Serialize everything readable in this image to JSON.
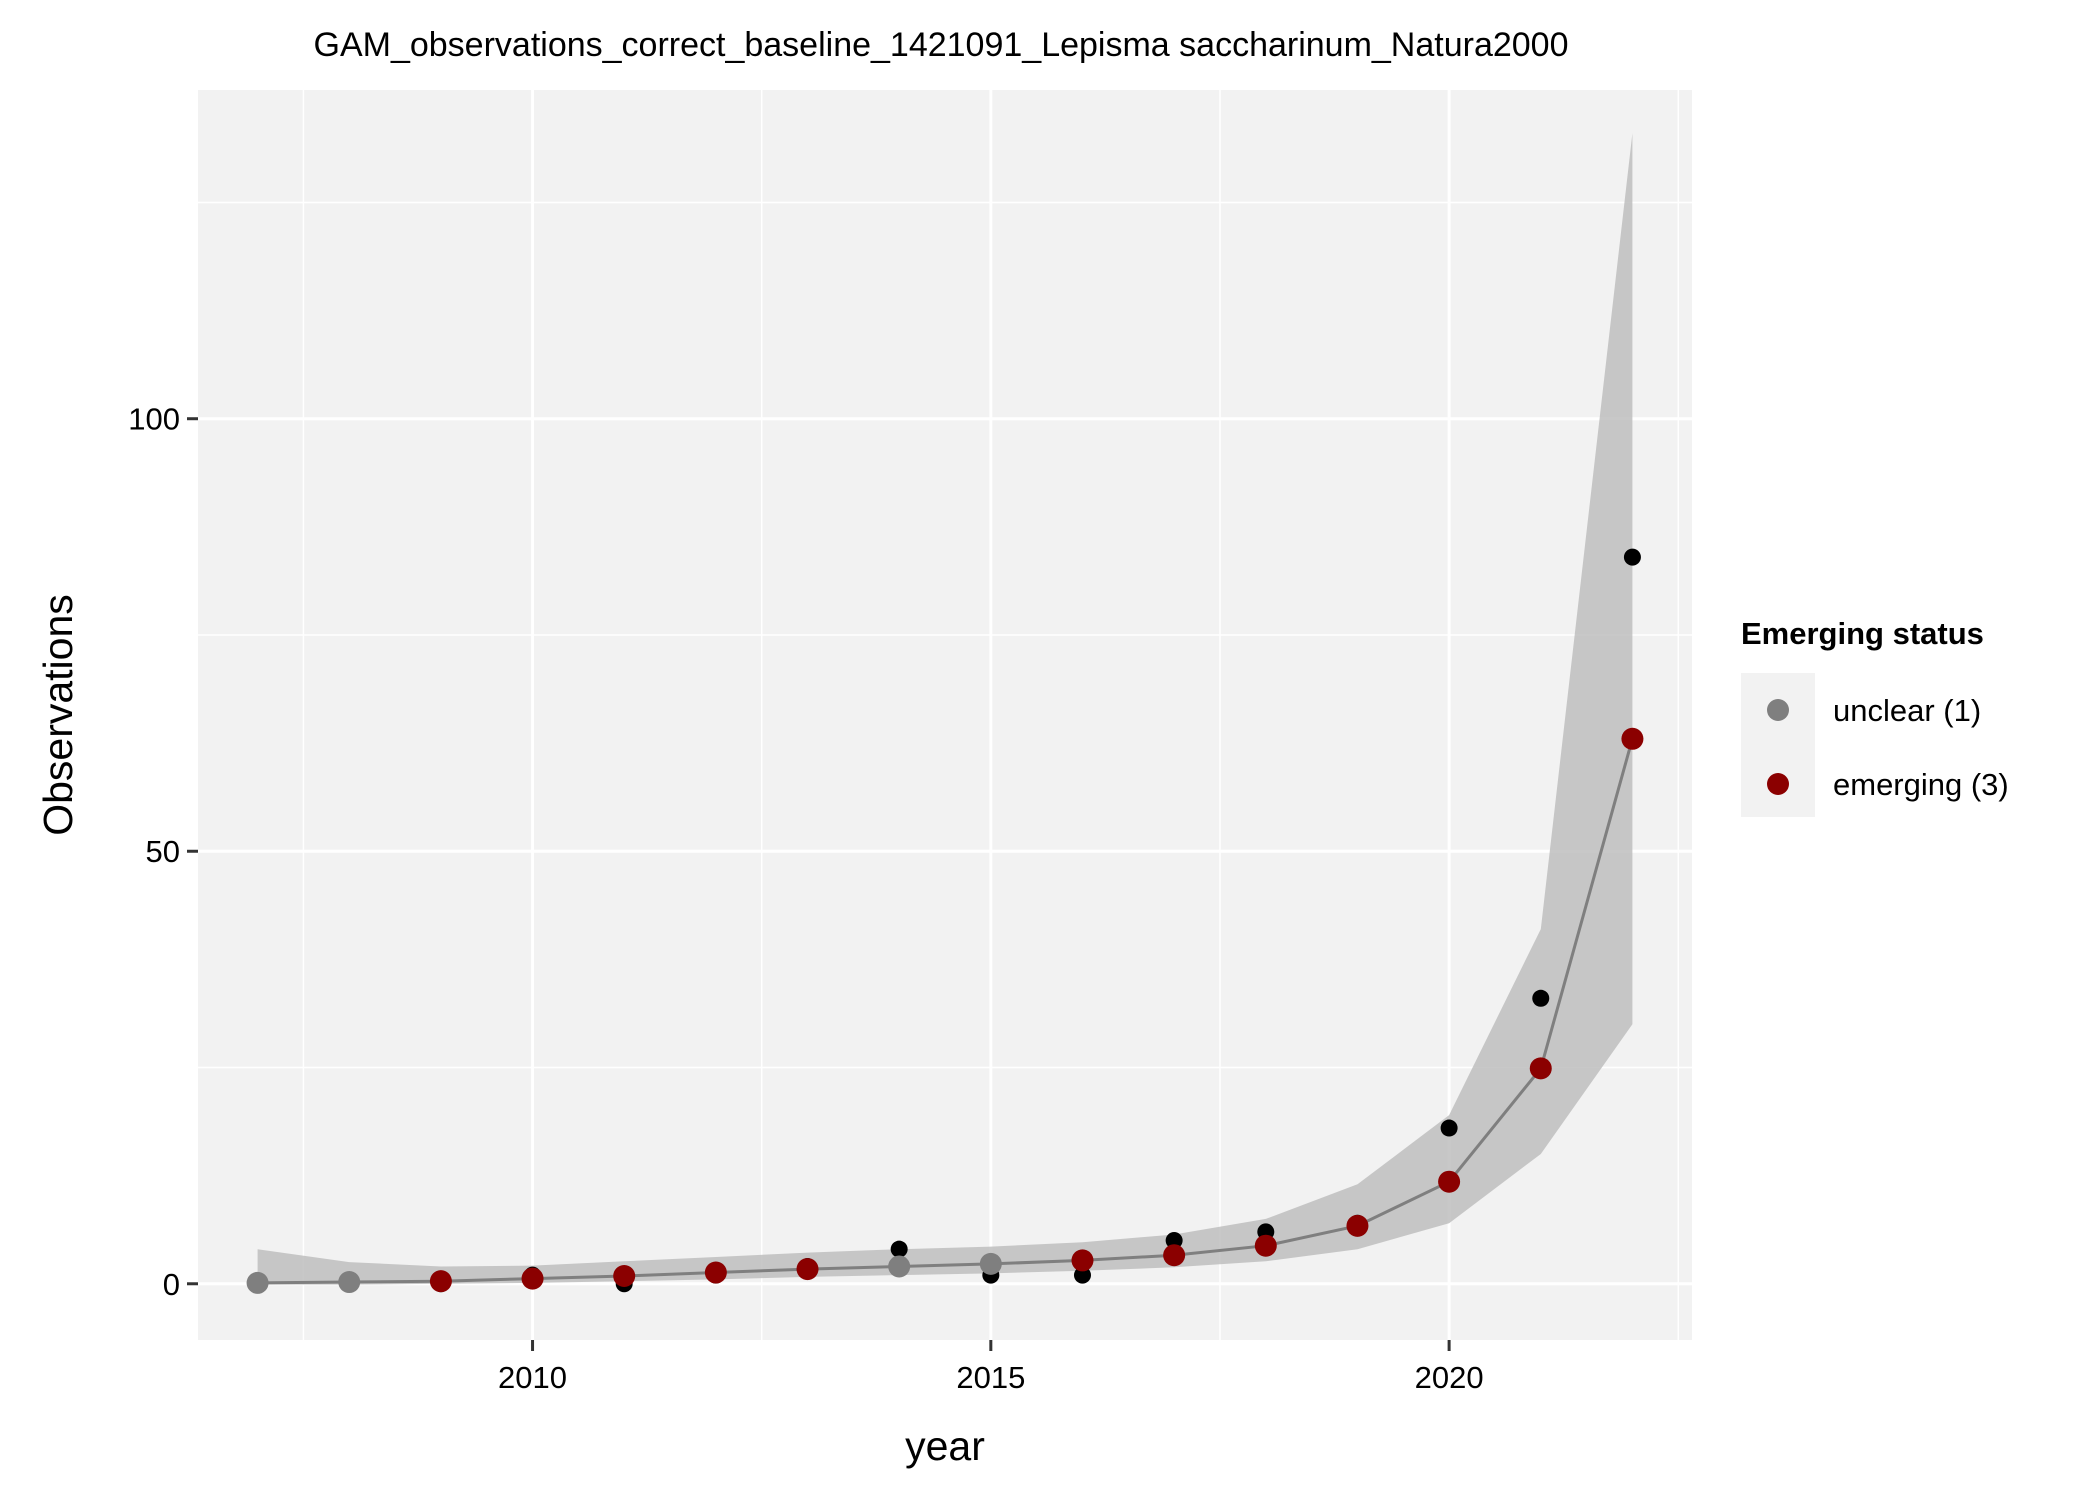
{
  "chart_data": {
    "type": "scatter",
    "title": "GAM_observations_correct_baseline_1421091_Lepisma saccharinum_Natura2000",
    "xlabel": "year",
    "ylabel": "Observations",
    "xlim": [
      2006.35,
      2022.65
    ],
    "ylim": [
      -6.5,
      138
    ],
    "x_ticks": [
      2010,
      2015,
      2020
    ],
    "y_ticks": [
      0,
      50,
      100
    ],
    "grid": true,
    "legend": {
      "title": "Emerging status",
      "position": "right",
      "entries": [
        {
          "label": "unclear (1)",
          "color": "#7f7f7f"
        },
        {
          "label": "emerging (3)",
          "color": "#8b0000"
        }
      ]
    },
    "observed": {
      "color": "#000000",
      "points": [
        {
          "x": 2007,
          "y": 0
        },
        {
          "x": 2008,
          "y": 0
        },
        {
          "x": 2009,
          "y": 0
        },
        {
          "x": 2010,
          "y": 1
        },
        {
          "x": 2011,
          "y": 0
        },
        {
          "x": 2012,
          "y": 1
        },
        {
          "x": 2013,
          "y": 2
        },
        {
          "x": 2014,
          "y": 4
        },
        {
          "x": 2015,
          "y": 1
        },
        {
          "x": 2016,
          "y": 1
        },
        {
          "x": 2017,
          "y": 5
        },
        {
          "x": 2018,
          "y": 6
        },
        {
          "x": 2019,
          "y": 7
        },
        {
          "x": 2020,
          "y": 18
        },
        {
          "x": 2021,
          "y": 33
        },
        {
          "x": 2022,
          "y": 84
        }
      ]
    },
    "fit": {
      "line_color": "#7f7f7f",
      "band_color": "#bebebe",
      "points": [
        {
          "x": 2007,
          "y": 0.1,
          "lower": -0.1,
          "upper": 4.0,
          "status": "unclear (1)"
        },
        {
          "x": 2008,
          "y": 0.2,
          "lower": -0.1,
          "upper": 2.5,
          "status": "unclear (1)"
        },
        {
          "x": 2009,
          "y": 0.3,
          "lower": 0.0,
          "upper": 2.0,
          "status": "emerging (3)"
        },
        {
          "x": 2010,
          "y": 0.6,
          "lower": 0.1,
          "upper": 2.1,
          "status": "emerging (3)"
        },
        {
          "x": 2011,
          "y": 0.9,
          "lower": 0.3,
          "upper": 2.6,
          "status": "emerging (3)"
        },
        {
          "x": 2012,
          "y": 1.3,
          "lower": 0.5,
          "upper": 3.1,
          "status": "emerging (3)"
        },
        {
          "x": 2013,
          "y": 1.7,
          "lower": 0.8,
          "upper": 3.6,
          "status": "emerging (3)"
        },
        {
          "x": 2014,
          "y": 2.0,
          "lower": 1.0,
          "upper": 4.0,
          "status": "unclear (1)"
        },
        {
          "x": 2015,
          "y": 2.3,
          "lower": 1.2,
          "upper": 4.3,
          "status": "unclear (1)"
        },
        {
          "x": 2016,
          "y": 2.7,
          "lower": 1.5,
          "upper": 4.8,
          "status": "emerging (3)"
        },
        {
          "x": 2017,
          "y": 3.3,
          "lower": 1.9,
          "upper": 5.7,
          "status": "emerging (3)"
        },
        {
          "x": 2018,
          "y": 4.4,
          "lower": 2.6,
          "upper": 7.5,
          "status": "emerging (3)"
        },
        {
          "x": 2019,
          "y": 6.7,
          "lower": 4.0,
          "upper": 11.5,
          "status": "emerging (3)"
        },
        {
          "x": 2020,
          "y": 11.8,
          "lower": 7.0,
          "upper": 19.5,
          "status": "emerging (3)"
        },
        {
          "x": 2021,
          "y": 24.9,
          "lower": 15.0,
          "upper": 41.0,
          "status": "emerging (3)"
        },
        {
          "x": 2022,
          "y": 63.0,
          "lower": 30.0,
          "upper": 133.0,
          "status": "emerging (3)"
        }
      ]
    }
  }
}
